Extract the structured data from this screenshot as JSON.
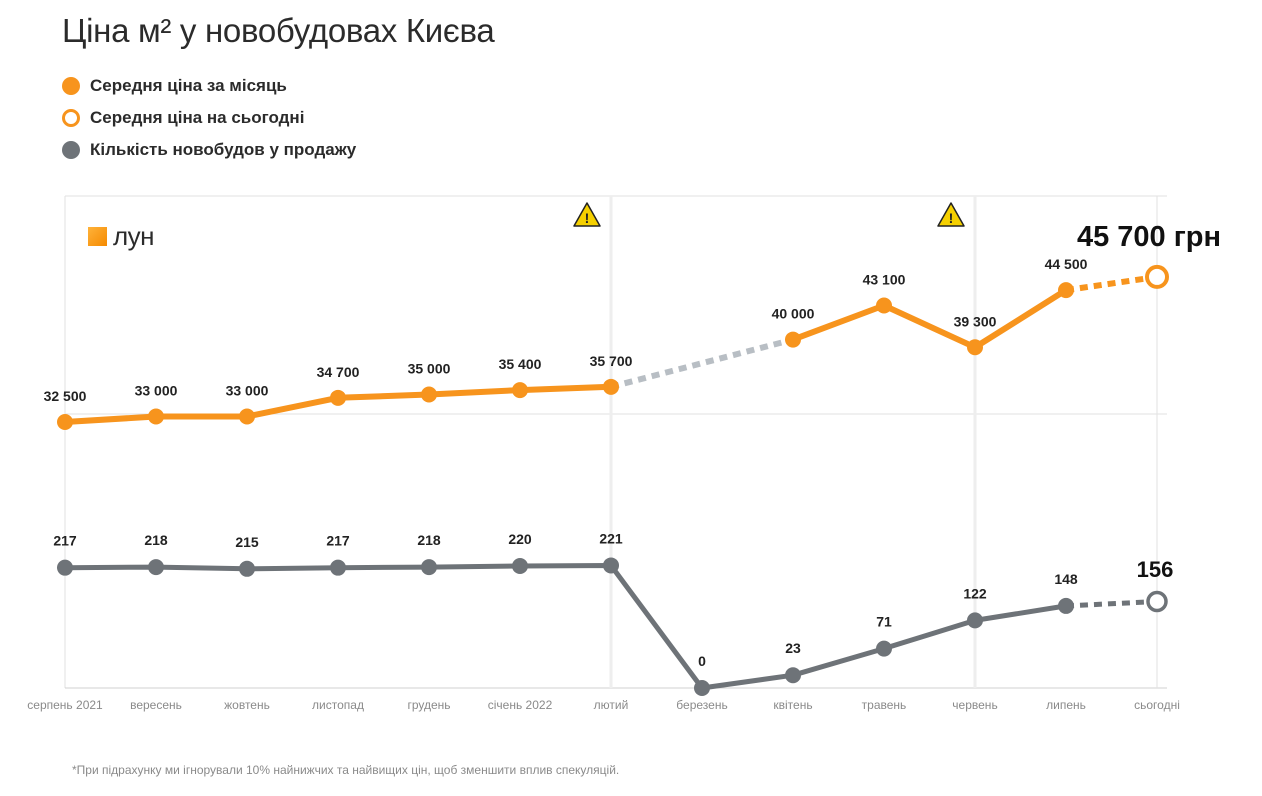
{
  "header": {
    "title": "Ціна м² у новобудовах Києва"
  },
  "legend": [
    {
      "label": "Середня ціна за місяць",
      "icon": "filled-orange-dot",
      "color": "#f7941d"
    },
    {
      "label": "Середня ціна на сьогодні",
      "icon": "hollow-orange-dot",
      "color": "#f7941d"
    },
    {
      "label": "Кількість новобудов у продажу",
      "icon": "filled-gray-dot",
      "color": "#6e7378"
    }
  ],
  "brand": {
    "name": "лун"
  },
  "footnote": "*При підрахунку ми ігнорували 10% найнижчих та найвищих цін, щоб зменшити вплив спекуляцій.",
  "colors": {
    "price": "#f7941d",
    "count": "#6e7378",
    "gap": "#b8bec4",
    "grid": "#e2e2e2",
    "warning": "#f5d000"
  },
  "chart_data": {
    "type": "line",
    "categories": [
      "серпень 2021",
      "вересень",
      "жовтень",
      "листопад",
      "грудень",
      "січень 2022",
      "лютий",
      "березень",
      "квітень",
      "травень",
      "червень",
      "липень",
      "сьогодні"
    ],
    "series": [
      {
        "name": "Середня ціна за місяць",
        "values": [
          32500,
          33000,
          33000,
          34700,
          35000,
          35400,
          35700,
          null,
          40000,
          43100,
          39300,
          44500,
          45700
        ],
        "labels": [
          "32 500",
          "33 000",
          "33 000",
          "34 700",
          "35 000",
          "35 400",
          "35 700",
          "",
          "40 000",
          "43 100",
          "39 300",
          "44 500",
          "45 700 грн"
        ]
      },
      {
        "name": "Кількість новобудов у продажу",
        "values": [
          217,
          218,
          215,
          217,
          218,
          220,
          221,
          0,
          23,
          71,
          122,
          148,
          156
        ],
        "labels": [
          "217",
          "218",
          "215",
          "217",
          "218",
          "220",
          "221",
          "0",
          "23",
          "71",
          "122",
          "148",
          "156"
        ]
      }
    ],
    "gap": {
      "price_from": "лютий",
      "price_to": "квітень"
    },
    "today_point": "сьогодні",
    "warning_markers": [
      "лютий",
      "червень"
    ],
    "grid": true,
    "legend_position": "top-left"
  }
}
